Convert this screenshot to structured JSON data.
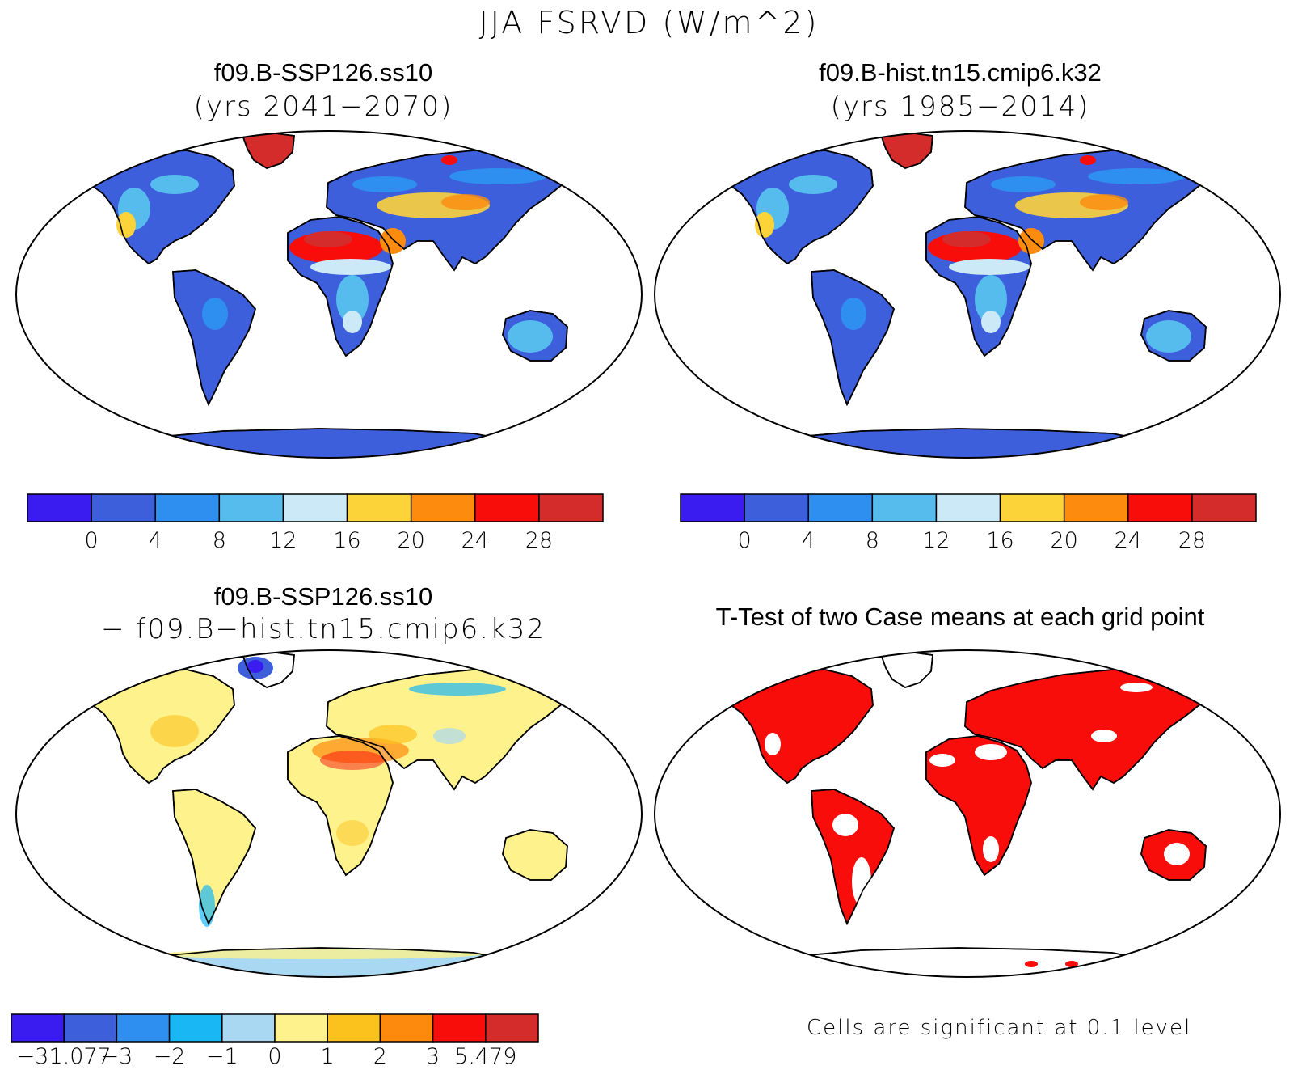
{
  "figure": {
    "title": "JJA FSRVD (W/m^2)"
  },
  "panels": [
    {
      "id": "top-left",
      "title": "f09.B-SSP126.ss10",
      "subtitle": "(yrs 2041−2070)",
      "colorbar": {
        "colors": [
          "#3a1cf0",
          "#3d5fdc",
          "#2f8ff0",
          "#56bcee",
          "#cce9f7",
          "#fdd33a",
          "#fd8b0e",
          "#f80d0b",
          "#d42b2b"
        ],
        "labels": [
          "0",
          "4",
          "8",
          "12",
          "16",
          "20",
          "24",
          "28"
        ]
      }
    },
    {
      "id": "top-right",
      "title": "f09.B-hist.tn15.cmip6.k32",
      "subtitle": "(yrs 1985−2014)",
      "colorbar": {
        "colors": [
          "#3a1cf0",
          "#3d5fdc",
          "#2f8ff0",
          "#56bcee",
          "#cce9f7",
          "#fdd33a",
          "#fd8b0e",
          "#f80d0b",
          "#d42b2b"
        ],
        "labels": [
          "0",
          "4",
          "8",
          "12",
          "16",
          "20",
          "24",
          "28"
        ]
      }
    },
    {
      "id": "bottom-left",
      "title": "f09.B-SSP126.ss10",
      "subtitle": "− f09.B−hist.tn15.cmip6.k32",
      "colorbar": {
        "colors": [
          "#3a1cf0",
          "#3d5fdc",
          "#2f8ff0",
          "#19b8f4",
          "#a9d8f2",
          "#fdf28c",
          "#fbc21e",
          "#fd8a0c",
          "#f80d0b",
          "#d42b2b"
        ],
        "labels": [
          "−31.077",
          "−3",
          "−2",
          "−1",
          "0",
          "1",
          "2",
          "3",
          "5.479"
        ]
      }
    },
    {
      "id": "bottom-right",
      "title": "T-Test of two Case means at each grid point",
      "footnote": "Cells are significant at 0.1 level",
      "colors": {
        "significant": "#f80d0b"
      }
    }
  ]
}
